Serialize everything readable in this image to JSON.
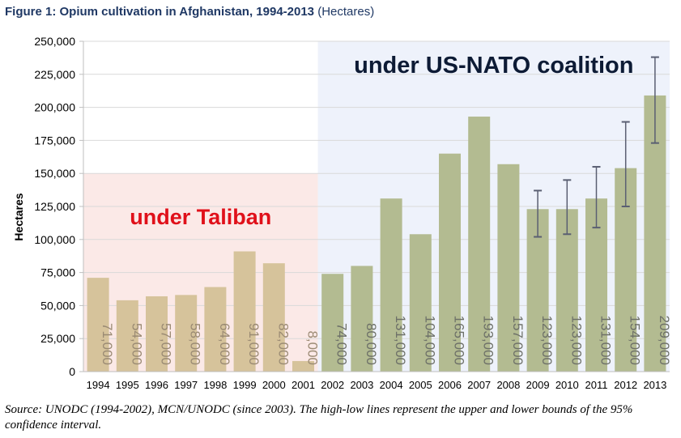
{
  "title": {
    "main": "Figure 1: Opium cultivation in Afghanistan, 1994-2013",
    "unit": "(Hectares)"
  },
  "source_note": "Source: UNODC (1994-2002), MCN/UNODC (since 2003). The high-low lines represent the upper and lower bounds of the 95% confidence interval.",
  "chart_data": {
    "type": "bar",
    "title": "Figure 1: Opium cultivation in Afghanistan, 1994-2013 (Hectares)",
    "ylabel": "Hectares",
    "xlabel": "",
    "ylim": [
      0,
      250000
    ],
    "yticks": [
      0,
      25000,
      50000,
      75000,
      100000,
      125000,
      150000,
      175000,
      200000,
      225000,
      250000
    ],
    "ytick_labels": [
      "0",
      "25,000",
      "50,000",
      "75,000",
      "100,000",
      "125,000",
      "150,000",
      "175,000",
      "200,000",
      "225,000",
      "250,000"
    ],
    "grid": true,
    "categories": [
      "1994",
      "1995",
      "1996",
      "1997",
      "1998",
      "1999",
      "2000",
      "2001",
      "2002",
      "2003",
      "2004",
      "2005",
      "2006",
      "2007",
      "2008",
      "2009",
      "2010",
      "2011",
      "2012",
      "2013"
    ],
    "values": [
      71000,
      54000,
      57000,
      58000,
      64000,
      91000,
      82000,
      8000,
      74000,
      80000,
      131000,
      104000,
      165000,
      193000,
      157000,
      123000,
      123000,
      131000,
      154000,
      209000
    ],
    "value_labels": [
      "71,000",
      "54,000",
      "57,000",
      "58,000",
      "64,000",
      "91,000",
      "82,000",
      "8,000",
      "74,000",
      "80,000",
      "131,000",
      "104,000",
      "165,000",
      "193,000",
      "157,000",
      "123,000",
      "123,000",
      "131,000",
      "154,000",
      "209,000"
    ],
    "error_bars": [
      {
        "category": "2009",
        "low": 102000,
        "high": 137000
      },
      {
        "category": "2010",
        "low": 104000,
        "high": 145000
      },
      {
        "category": "2011",
        "low": 109000,
        "high": 155000
      },
      {
        "category": "2012",
        "low": 125000,
        "high": 189000
      },
      {
        "category": "2013",
        "low": 173000,
        "high": 238000
      }
    ],
    "regions": [
      {
        "label": "under Taliban",
        "from": "1994",
        "to": "2001",
        "fill": "#fbe9e7",
        "label_color": "#e0101a"
      },
      {
        "label": "under US-NATO coalition",
        "from": "2002",
        "to": "2013",
        "fill": "#eef2fb",
        "label_color": "#0d1b35"
      }
    ],
    "colors": {
      "taliban_bar": "#d6c39b",
      "coalition_bar": "#b3bb91",
      "taliban_label": "#9a8a73",
      "coalition_label": "#6d7068",
      "grid": "#d9d9d9",
      "error_bar": "#5a5f72"
    }
  }
}
